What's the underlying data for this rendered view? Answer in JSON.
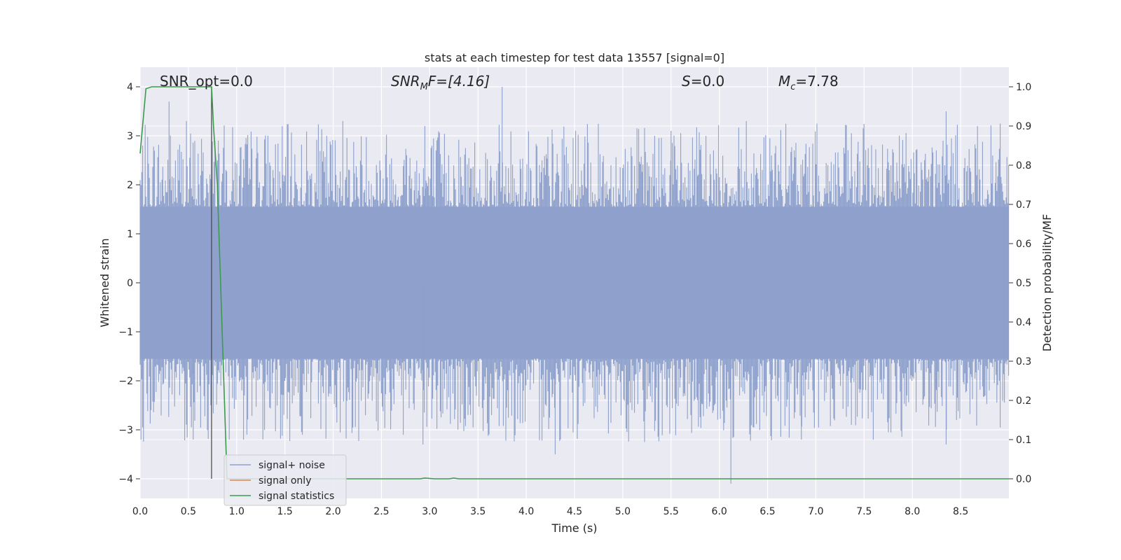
{
  "chart_data": {
    "type": "line",
    "title": "stats at each timestep for test data 13557 [signal=0]",
    "xlabel": "Time (s)",
    "ylabel_left": "Whitened strain",
    "ylabel_right": "Detection probability/MF",
    "xlim": [
      0.0,
      9.0
    ],
    "ylim_left": [
      -4.4,
      4.4
    ],
    "ylim_right": [
      -0.05,
      1.05
    ],
    "grid": true,
    "legend_placement": "lower-left",
    "xticks": [
      "0.0",
      "0.5",
      "1.0",
      "1.5",
      "2.0",
      "2.5",
      "3.0",
      "3.5",
      "4.0",
      "4.5",
      "5.0",
      "5.5",
      "6.0",
      "6.5",
      "7.0",
      "7.5",
      "8.0",
      "8.5"
    ],
    "yticks_left": [
      "−4",
      "−3",
      "−2",
      "−1",
      "0",
      "1",
      "2",
      "3",
      "4"
    ],
    "yticks_right": [
      "0.0",
      "0.1",
      "0.2",
      "0.3",
      "0.4",
      "0.5",
      "0.6",
      "0.7",
      "0.8",
      "0.9",
      "1.0"
    ],
    "annotations": {
      "snr_opt": "SNR_opt=0.0",
      "snr_mf_main": "SNR",
      "snr_mf_sub": "M",
      "snr_mf_tail": "F=[4.16]",
      "s_main": "S",
      "s_tail": "=0.0",
      "mc_main": "M",
      "mc_sub": "c",
      "mc_tail": "=7.78"
    },
    "vline": {
      "x": 0.74,
      "y_range": [
        -4.0,
        4.0
      ]
    },
    "series": [
      {
        "name": "signal+ noise",
        "axis": "left",
        "color": "#8da0cb",
        "kind": "dense-strain",
        "x_range": [
          0.0,
          9.0
        ],
        "core_band": [
          -1.55,
          1.55
        ],
        "notable_peaks": [
          {
            "x": 0.3,
            "y": 3.7
          },
          {
            "x": 0.48,
            "y": 3.3
          },
          {
            "x": 0.55,
            "y": -3.2
          },
          {
            "x": 0.81,
            "y": 2.9
          },
          {
            "x": 2.1,
            "y": 3.3
          },
          {
            "x": 2.95,
            "y": 3.2
          },
          {
            "x": 2.93,
            "y": -3.3
          },
          {
            "x": 3.75,
            "y": 4.0
          },
          {
            "x": 4.3,
            "y": -3.5
          },
          {
            "x": 5.5,
            "y": 3.1
          },
          {
            "x": 6.12,
            "y": -4.1
          },
          {
            "x": 6.28,
            "y": 3.3
          },
          {
            "x": 6.85,
            "y": -3.2
          },
          {
            "x": 8.35,
            "y": 3.5
          },
          {
            "x": 8.35,
            "y": -3.3
          }
        ]
      },
      {
        "name": "signal only",
        "axis": "left",
        "color": "#dd8452",
        "x": [
          0.0,
          9.0
        ],
        "y": [
          0.0,
          0.0
        ]
      },
      {
        "name": "signal statistics",
        "axis": "right",
        "color": "#3d9a4c",
        "x": [
          0.0,
          0.06,
          0.12,
          0.2,
          0.4,
          0.6,
          0.74,
          0.76,
          0.8,
          0.86,
          0.9,
          1.0,
          2.0,
          2.9,
          2.95,
          3.05,
          3.2,
          3.25,
          3.3,
          4.0,
          5.0,
          6.0,
          7.0,
          8.0,
          9.0
        ],
        "y": [
          0.83,
          0.995,
          1.0,
          1.0,
          1.0,
          1.0,
          1.0,
          0.9,
          0.75,
          0.3,
          0.0,
          0.0,
          0.0,
          0.0,
          0.002,
          0.0,
          0.0,
          0.002,
          0.0,
          0.0,
          0.0,
          0.0,
          0.0,
          0.0,
          0.0
        ]
      }
    ]
  }
}
